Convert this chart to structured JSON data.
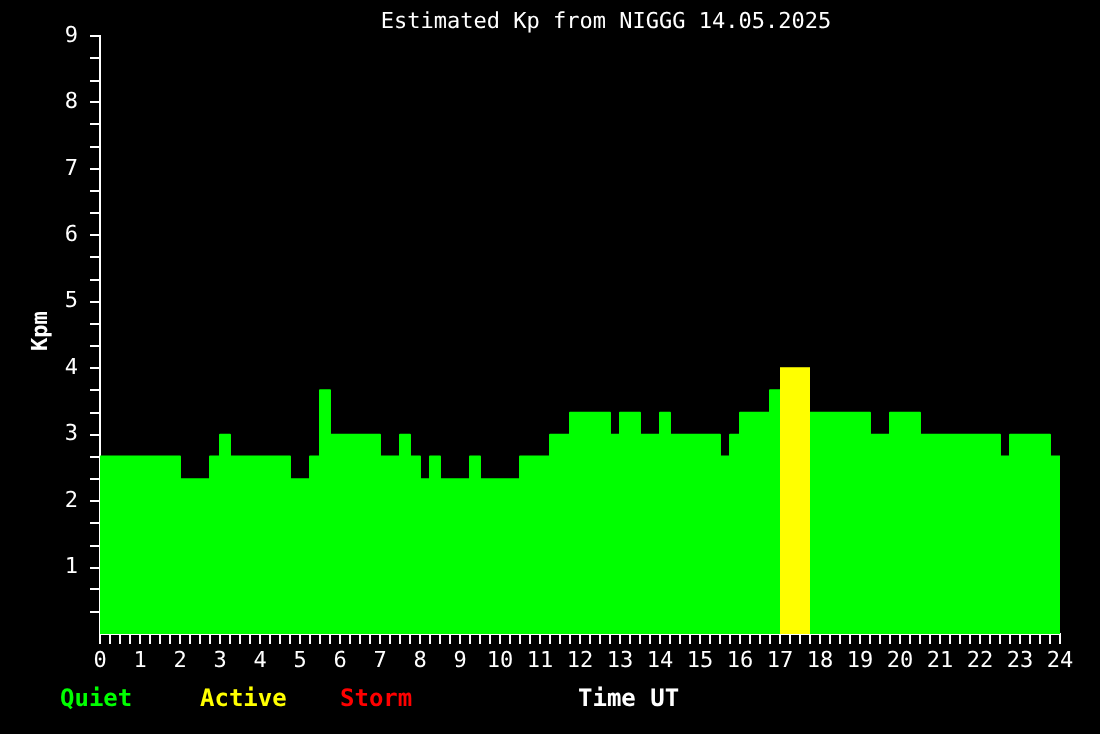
{
  "chart_data": {
    "type": "area",
    "title": "Estimated Kp from NIGGG 14.05.2025",
    "xlabel": "Time UT",
    "ylabel": "Kpm",
    "series": [
      {
        "name": "Quiet",
        "color": "#00ff00",
        "values": [
          2.67,
          2.67,
          2.33,
          2.33,
          2.67,
          2.67,
          3,
          3,
          2.67,
          2.67,
          2.33,
          2.33,
          2.67,
          2.67,
          3.67,
          3.67,
          3,
          3,
          2.67,
          2.67,
          3,
          3,
          2.67,
          2.67,
          2.33,
          2.33,
          2.67,
          2.67,
          2.33,
          2.33,
          2.67,
          2.67,
          2.33,
          2.33,
          2.67,
          2.67,
          3,
          3,
          3.33,
          3.33,
          3,
          3,
          3.33,
          3.33,
          3,
          3,
          3.33,
          3.33,
          3,
          3,
          2.67,
          2.67,
          3,
          3,
          3.33,
          3.33,
          3.67,
          3.67
        ],
        "x": [
          0,
          2,
          2,
          2.75,
          2.75,
          3,
          3,
          3.25,
          3.25,
          4.75,
          4.75,
          5.25,
          5.25,
          5.5,
          5.5,
          5.75,
          5.75,
          7,
          7,
          7.5,
          7.5,
          7.75,
          7.75,
          8,
          8,
          8.25,
          8.25,
          8.5,
          8.5,
          9.25,
          9.25,
          9.5,
          9.5,
          10.5,
          10.5,
          11.25,
          11.25,
          11.75,
          11.75,
          12.75,
          12.75,
          13,
          13,
          13.5,
          13.5,
          14,
          14,
          14.25,
          14.25,
          15.5,
          15.5,
          15.75,
          15.75,
          16,
          16,
          16.75,
          16.75,
          17
        ]
      },
      {
        "color": "#00ff00",
        "x": [
          17.75,
          19.25,
          19.25,
          19.75,
          19.75,
          20.5,
          20.5,
          22.5,
          22.5,
          22.75,
          22.75,
          23.75,
          23.75,
          24
        ],
        "values": [
          3.33,
          3.33,
          3,
          3,
          3.33,
          3.33,
          3,
          3,
          2.67,
          2.67,
          3,
          3,
          2.67,
          2.67
        ]
      },
      {
        "name": "Active",
        "color": "#ffff00",
        "x": [
          17,
          17.75
        ],
        "values": [
          4,
          4
        ]
      }
    ],
    "annotations": [
      "Storm"
    ],
    "marker": "none",
    "xlim": [
      0,
      24
    ],
    "xticks": [
      0,
      {
        "value": 0.25,
        "label": null
      },
      {
        "value": 0.5,
        "label": null
      },
      {
        "value": 0.75,
        "label": null
      },
      1,
      {
        "value": 1.25,
        "label": null
      },
      {
        "value": 1.5,
        "label": null
      },
      {
        "value": 1.75,
        "label": null
      },
      2,
      {
        "value": 2.25,
        "label": null
      },
      {
        "value": 2.5,
        "label": null
      },
      {
        "value": 2.75,
        "label": null
      },
      3,
      {
        "value": 3.25,
        "label": null
      },
      {
        "value": 3.5,
        "label": null
      },
      {
        "value": 3.75,
        "label": null
      },
      4,
      {
        "value": 4.25,
        "label": null
      },
      {
        "value": 4.5,
        "label": null
      },
      {
        "value": 4.75,
        "label": null
      },
      5,
      {
        "value": 5.25,
        "label": null
      },
      {
        "value": 5.5,
        "label": null
      },
      {
        "value": 5.75,
        "label": null
      },
      6,
      {
        "value": 6.25,
        "label": null
      },
      {
        "value": 6.5,
        "label": null
      },
      {
        "value": 6.75,
        "label": null
      },
      7,
      {
        "value": 7.25,
        "label": null
      },
      {
        "value": 7.5,
        "label": null
      },
      {
        "value": 7.75,
        "label": null
      },
      8,
      {
        "value": 8.25,
        "label": null
      },
      {
        "value": 8.5,
        "label": null
      },
      {
        "value": 8.75,
        "label": null
      },
      9,
      {
        "value": 9.25,
        "label": null
      },
      {
        "value": 9.5,
        "label": null
      },
      {
        "value": 9.75,
        "label": null
      },
      10,
      {
        "value": 10.25,
        "label": null
      },
      {
        "value": 10.5,
        "label": null
      },
      {
        "value": 10.75,
        "label": null
      },
      11,
      {
        "value": 11.25,
        "label": null
      },
      {
        "value": 11.5,
        "label": null
      },
      {
        "value": 11.75,
        "label": null
      },
      12,
      {
        "value": 12.25,
        "label": null
      },
      {
        "value": 12.5,
        "label": null
      },
      {
        "value": 12.75,
        "label": null
      },
      13,
      {
        "value": 13.25,
        "label": null
      },
      {
        "value": 13.5,
        "label": null
      },
      {
        "value": 13.75,
        "label": null
      },
      14,
      {
        "value": 14.25,
        "label": null
      },
      {
        "value": 14.5,
        "label": null
      },
      {
        "value": 14.75,
        "label": null
      },
      15,
      {
        "value": 15.25,
        "label": null
      },
      {
        "value": 15.5,
        "label": null
      },
      {
        "value": 15.75,
        "label": null
      },
      16,
      {
        "value": 16.25,
        "label": null
      },
      {
        "value": 16.5,
        "label": null
      },
      {
        "value": 16.75,
        "label": null
      },
      17,
      {
        "value": 17.25,
        "label": null
      },
      {
        "value": 17.5,
        "label": null
      },
      {
        "value": 17.75,
        "label": null
      },
      18,
      {
        "value": 18.25,
        "label": null
      },
      {
        "value": 18.5,
        "label": null
      },
      {
        "value": 18.75,
        "label": null
      },
      19,
      {
        "value": 19.25,
        "label": null
      },
      {
        "value": 19.5,
        "label": null
      },
      {
        "value": 19.75,
        "label": null
      },
      20,
      {
        "value": 20.25,
        "label": null
      },
      {
        "value": 20.5,
        "label": null
      },
      {
        "value": 20.75,
        "label": null
      },
      21,
      {
        "value": 21.25,
        "label": null
      },
      {
        "value": 21.5,
        "label": null
      },
      {
        "value": 21.75,
        "label": null
      },
      22,
      {
        "value": 22.25,
        "label": null
      },
      {
        "value": 22.5,
        "label": null
      },
      {
        "value": 22.75,
        "label": null
      },
      23,
      {
        "value": 23.25,
        "label": null
      },
      {
        "value": 23.5,
        "label": null
      },
      {
        "value": 23.75,
        "label": null
      },
      24
    ],
    "ylim": [
      0,
      9
    ],
    "yticks": [
      {
        "value": 0.33,
        "label": null
      },
      {
        "value": 0.67,
        "label": null
      },
      1,
      {
        "value": 1.33,
        "label": null
      },
      {
        "value": 1.67,
        "label": null
      },
      2,
      {
        "value": 2.33,
        "label": null
      },
      {
        "value": 2.67,
        "label": null
      },
      3,
      {
        "value": 3.33,
        "label": null
      },
      {
        "value": 3.67,
        "label": null
      },
      4,
      {
        "value": 4.33,
        "label": null
      },
      {
        "value": 4.67,
        "label": null
      },
      5,
      {
        "value": 5.33,
        "label": null
      },
      {
        "value": 5.67,
        "label": null
      },
      6,
      {
        "value": 6.33,
        "label": null
      },
      {
        "value": 6.67,
        "label": null
      },
      7,
      {
        "value": 7.33,
        "label": null
      },
      {
        "value": 7.67,
        "label": null
      },
      8,
      {
        "value": 8.33,
        "label": null
      },
      {
        "value": 8.67,
        "label": null
      },
      9
    ],
    "legend": "bottom left"
  }
}
